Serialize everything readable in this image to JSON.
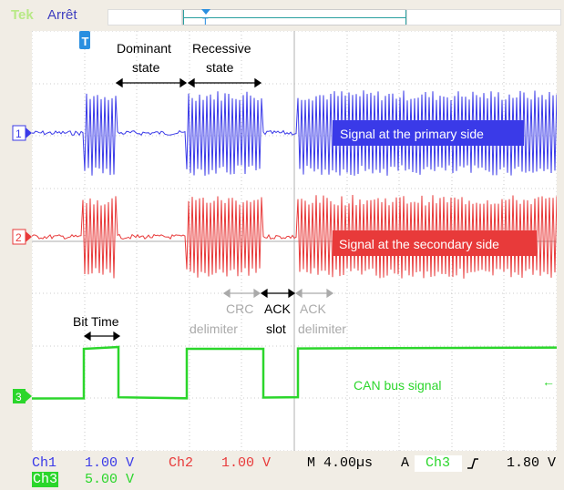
{
  "topbar": {
    "brand": "Tek",
    "run_state": "Arrêt"
  },
  "channels": [
    {
      "id": "1",
      "color": "#3a3ae8"
    },
    {
      "id": "2",
      "color": "#e83a3a"
    },
    {
      "id": "3",
      "color": "#2bd62b"
    }
  ],
  "annotations": {
    "dominant_state": "Dominant\nstate",
    "recessive_state": "Recessive\nstate",
    "signal_primary": "Signal at the primary side",
    "signal_secondary": "Signal at the secondary side",
    "crc_delimiter": "CRC\ndelimiter",
    "ack_slot": "ACK\nslot",
    "ack_delimiter": "ACK\ndelimiter",
    "bit_time": "Bit Time",
    "can_bus_signal": "CAN bus signal"
  },
  "status": {
    "ch1_label": "Ch1",
    "ch1_scale": "1.00 V",
    "ch2_label": "Ch2",
    "ch2_scale": "1.00 V",
    "timebase": "M 4.00µs",
    "trigger_label": "A",
    "trigger_source": "Ch3",
    "trigger_slope_icon": "rising-edge-icon",
    "trigger_level": "1.80 V",
    "ch3_label": "Ch3",
    "ch3_scale": "5.00 V"
  },
  "colors": {
    "ch1": "#3a3ae8",
    "ch2": "#e83a3a",
    "ch3": "#2bd62b",
    "annotation_blue_text": "#ffffff",
    "annotation_green_text": "#2bd62b",
    "grid": "#bdbdbd"
  }
}
